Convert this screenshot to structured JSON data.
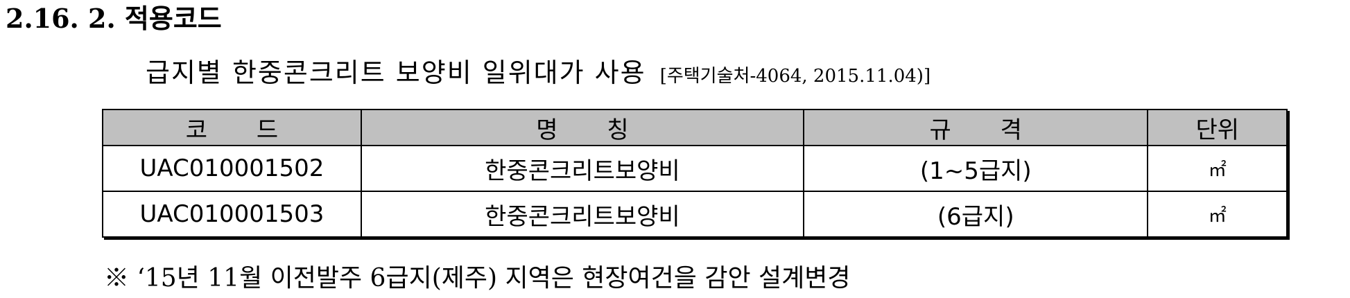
{
  "section": {
    "heading": "2.16. 2. 적용코드"
  },
  "subtitle": {
    "text": "급지별 한중콘크리트 보양비 일위대가 사용",
    "reference": "[주택기술처-4064, 2015.11.04)]"
  },
  "table": {
    "headers": {
      "code": "코 드",
      "name": "명 칭",
      "spec": "규 격",
      "unit": "단위"
    },
    "rows": [
      {
        "code": "UAC010001502",
        "name": "한중콘크리트보양비",
        "spec": "(1~5급지)",
        "unit": "㎡"
      },
      {
        "code": "UAC010001503",
        "name": "한중콘크리트보양비",
        "spec": "(6급지)",
        "unit": "㎡"
      }
    ]
  },
  "note": {
    "text": "※ ‘15년 11월 이전발주 6급지(제주) 지역은 현장여건을 감안 설계변경"
  }
}
